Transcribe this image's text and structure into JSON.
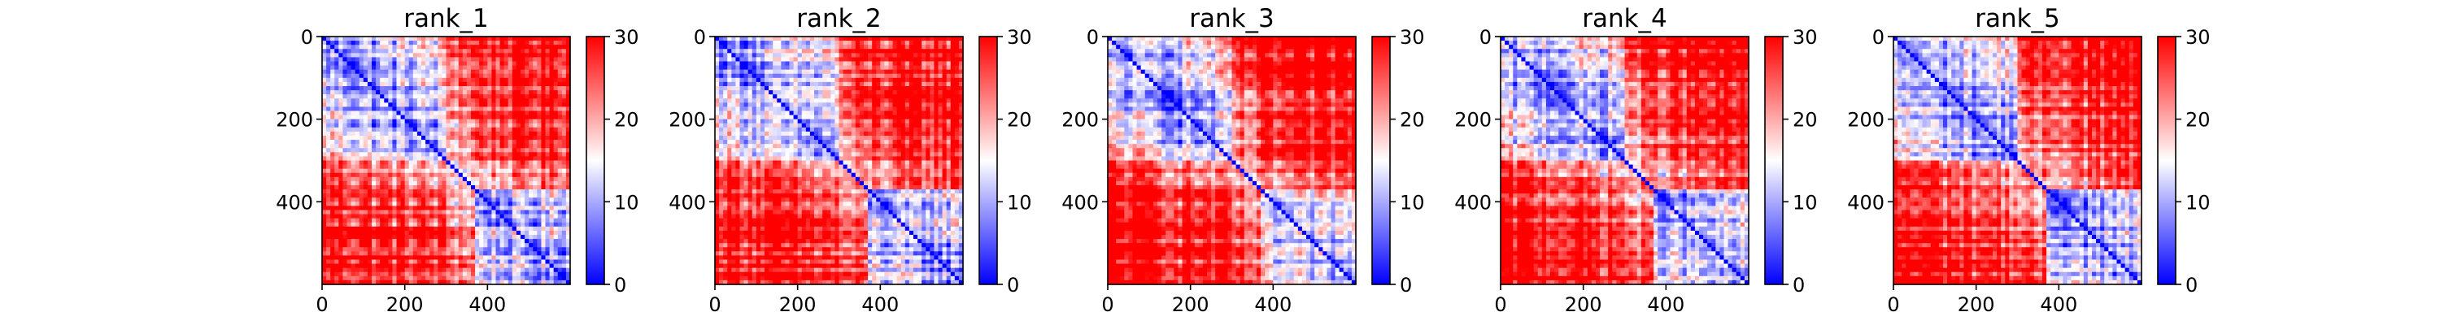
{
  "chart_data": [
    {
      "type": "heatmap",
      "title": "rank_1",
      "n_residues": 600,
      "xticks": [
        0,
        200,
        400
      ],
      "yticks": [
        0,
        200,
        400
      ],
      "colorbar": {
        "range": [
          0,
          30
        ],
        "ticks": [
          0,
          10,
          20,
          30
        ],
        "colormap": "bwr"
      },
      "diagonal_value": 0
    },
    {
      "type": "heatmap",
      "title": "rank_2",
      "n_residues": 600,
      "xticks": [
        0,
        200,
        400
      ],
      "yticks": [
        0,
        200,
        400
      ],
      "colorbar": {
        "range": [
          0,
          30
        ],
        "ticks": [
          0,
          10,
          20,
          30
        ],
        "colormap": "bwr"
      },
      "diagonal_value": 0
    },
    {
      "type": "heatmap",
      "title": "rank_3",
      "n_residues": 600,
      "xticks": [
        0,
        200,
        400
      ],
      "yticks": [
        0,
        200,
        400
      ],
      "colorbar": {
        "range": [
          0,
          30
        ],
        "ticks": [
          0,
          10,
          20,
          30
        ],
        "colormap": "bwr"
      },
      "diagonal_value": 0
    },
    {
      "type": "heatmap",
      "title": "rank_4",
      "n_residues": 600,
      "xticks": [
        0,
        200,
        400
      ],
      "yticks": [
        0,
        200,
        400
      ],
      "colorbar": {
        "range": [
          0,
          30
        ],
        "ticks": [
          0,
          10,
          20,
          30
        ],
        "colormap": "bwr"
      },
      "diagonal_value": 0
    },
    {
      "type": "heatmap",
      "title": "rank_5",
      "n_residues": 600,
      "xticks": [
        0,
        200,
        400
      ],
      "yticks": [
        0,
        200,
        400
      ],
      "colorbar": {
        "range": [
          0,
          30
        ],
        "ticks": [
          0,
          10,
          20,
          30
        ],
        "colormap": "bwr"
      },
      "diagonal_value": 0
    }
  ],
  "colors": {
    "low": "#0000ff",
    "mid": "#ffffff",
    "high": "#ff0000"
  }
}
